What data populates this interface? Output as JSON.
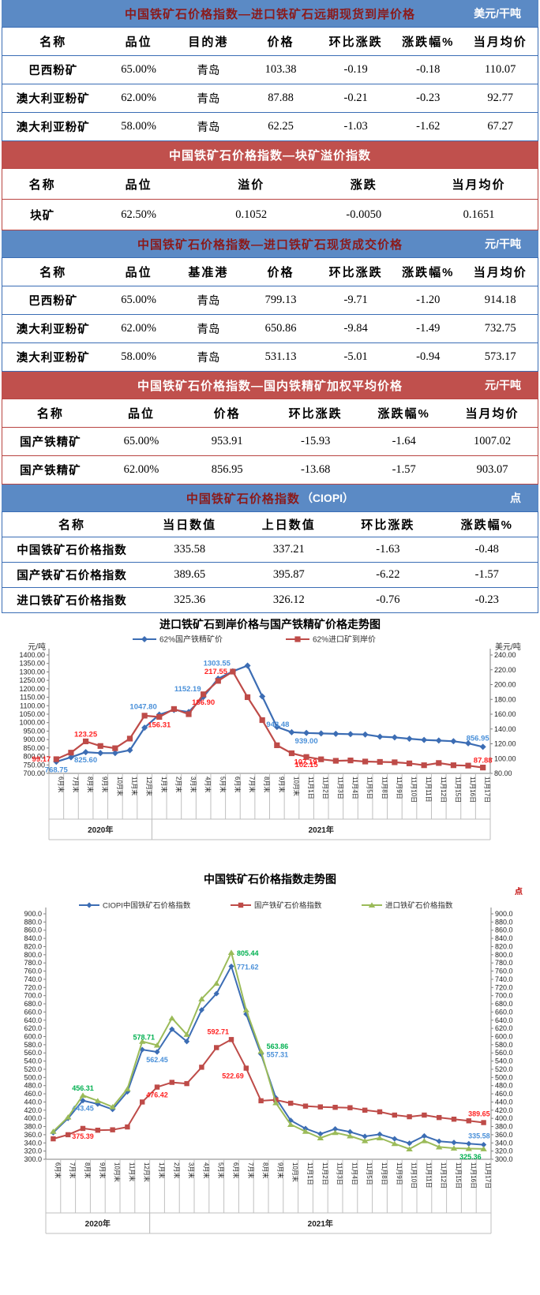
{
  "tables": [
    {
      "theme": "blue",
      "title": "中国铁矿石价格指数—进口铁矿石远期现货到岸价格",
      "unit": "美元/干吨",
      "columns": [
        "名称",
        "品位",
        "目的港",
        "价格",
        "环比涨跌",
        "涨跌幅%",
        "当月均价"
      ],
      "rows": [
        [
          "巴西粉矿",
          "65.00%",
          "青岛",
          "103.38",
          "-0.19",
          "-0.18",
          "110.07"
        ],
        [
          "澳大利亚粉矿",
          "62.00%",
          "青岛",
          "87.88",
          "-0.21",
          "-0.23",
          "92.77"
        ],
        [
          "澳大利亚粉矿",
          "58.00%",
          "青岛",
          "62.25",
          "-1.03",
          "-1.62",
          "67.27"
        ]
      ]
    },
    {
      "theme": "red",
      "title": "中国铁矿石价格指数—块矿溢价指数",
      "unit": "",
      "columns": [
        "名称",
        "品位",
        "溢价",
        "涨跌",
        "当月均价"
      ],
      "rows": [
        [
          "块矿",
          "62.50%",
          "0.1052",
          "-0.0050",
          "0.1651"
        ]
      ]
    },
    {
      "theme": "blue",
      "title": "中国铁矿石价格指数—进口铁矿石现货成交价格",
      "unit": "元/干吨",
      "columns": [
        "名称",
        "品位",
        "基准港",
        "价格",
        "环比涨跌",
        "涨跌幅%",
        "当月均价"
      ],
      "rows": [
        [
          "巴西粉矿",
          "65.00%",
          "青岛",
          "799.13",
          "-9.71",
          "-1.20",
          "914.18"
        ],
        [
          "澳大利亚粉矿",
          "62.00%",
          "青岛",
          "650.86",
          "-9.84",
          "-1.49",
          "732.75"
        ],
        [
          "澳大利亚粉矿",
          "58.00%",
          "青岛",
          "531.13",
          "-5.01",
          "-0.94",
          "573.17"
        ]
      ]
    },
    {
      "theme": "red",
      "title": "中国铁矿石价格指数—国内铁精矿加权平均价格",
      "unit": "元/干吨",
      "columns": [
        "名称",
        "品位",
        "价格",
        "环比涨跌",
        "涨跌幅%",
        "当月均价"
      ],
      "rows": [
        [
          "国产铁精矿",
          "65.00%",
          "953.91",
          "-15.93",
          "-1.64",
          "1007.02"
        ],
        [
          "国产铁精矿",
          "62.00%",
          "856.95",
          "-13.68",
          "-1.57",
          "903.07"
        ]
      ]
    },
    {
      "theme": "blue",
      "title": "中国铁矿石价格指数",
      "title2": "（CIOPI）",
      "unit": "点",
      "columns": [
        "名称",
        "当日数值",
        "上日数值",
        "环比涨跌",
        "涨跌幅%"
      ],
      "rows": [
        [
          "中国铁矿石价格指数",
          "335.58",
          "337.21",
          "-1.63",
          "-0.48"
        ],
        [
          "国产铁矿石价格指数",
          "389.65",
          "395.87",
          "-6.22",
          "-1.57"
        ],
        [
          "进口铁矿石价格指数",
          "325.36",
          "326.12",
          "-0.76",
          "-0.23"
        ]
      ]
    }
  ],
  "chart_data": [
    {
      "type": "line",
      "title": "进口铁矿石到岸价格与国产铁精矿价格走势图",
      "left_axis": {
        "min": 700,
        "max": 1400,
        "step": 50,
        "decimals": 2,
        "title": "元/吨"
      },
      "right_axis": {
        "min": 80,
        "max": 240,
        "step": 20,
        "decimals": 2,
        "title": "美元/吨"
      },
      "categories": [
        "6月末",
        "7月末",
        "8月末",
        "9月末",
        "10月末",
        "11月末",
        "12月末",
        "1月末",
        "2月末",
        "3月末",
        "4月末",
        "5月末",
        "6月末",
        "7月末",
        "8月末",
        "9月末",
        "10月末",
        "11月1日",
        "11月2日",
        "11月3日",
        "11月4日",
        "11月5日",
        "11月8日",
        "11月9日",
        "11月10日",
        "11月11日",
        "11月12日",
        "11月15日",
        "11月16日",
        "11月17日"
      ],
      "year_groups": [
        {
          "label": "2020年",
          "from": 0,
          "to": 6
        },
        {
          "label": "2021年",
          "from": 7,
          "to": 29
        }
      ],
      "series": [
        {
          "name": "62%国产铁精矿价",
          "color": "#3c6db4",
          "label_color": "#4a90d9",
          "marker": "diamond",
          "axis": "left",
          "values": [
            768.75,
            795,
            825.6,
            820,
            820,
            837,
            970,
            1047.8,
            1075,
            1063,
            1152.19,
            1260,
            1303.55,
            1337,
            1155,
            975,
            943.48,
            939.0,
            936,
            934,
            932,
            930,
            917,
            913,
            905,
            898,
            894,
            890,
            878,
            856.95
          ],
          "annotations": [
            {
              "i": 0,
              "text": "768.75",
              "pos": "below"
            },
            {
              "i": 2,
              "text": "825.60",
              "pos": "below"
            },
            {
              "i": 7,
              "text": "1047.80",
              "pos": "above-left"
            },
            {
              "i": 10,
              "text": "1152.19",
              "pos": "above-left"
            },
            {
              "i": 12,
              "text": "1303.55",
              "pos": "above-left"
            },
            {
              "i": 16,
              "text": "943.48",
              "pos": "above-left"
            },
            {
              "i": 17,
              "text": "939.00",
              "pos": "below"
            },
            {
              "i": 29,
              "text": "856.95",
              "pos": "above-end"
            }
          ]
        },
        {
          "name": "62%进口矿到岸价",
          "color": "#be4b48",
          "label_color": "#ff2222",
          "marker": "square",
          "axis": "right",
          "values": [
            99.17,
            108,
            123.25,
            117,
            114,
            127,
            158,
            156.31,
            167,
            160,
            186.9,
            205,
            217.55,
            183,
            152,
            118,
            107.19,
            102.15,
            99.0,
            97.0,
            97.5,
            96.0,
            95.5,
            95.0,
            93.5,
            91.0,
            94.0,
            91.0,
            90.5,
            87.88
          ],
          "annotations": [
            {
              "i": 0,
              "text": "99.17",
              "pos": "left"
            },
            {
              "i": 2,
              "text": "123.25",
              "pos": "above"
            },
            {
              "i": 7,
              "text": "156.31",
              "pos": "below"
            },
            {
              "i": 10,
              "text": "186.90",
              "pos": "below"
            },
            {
              "i": 12,
              "text": "217.55",
              "pos": "left"
            },
            {
              "i": 16,
              "text": "107.19",
              "pos": "below-right"
            },
            {
              "i": 17,
              "text": "102.15",
              "pos": "below"
            },
            {
              "i": 29,
              "text": "87.88",
              "pos": "above"
            }
          ]
        }
      ]
    },
    {
      "type": "line",
      "title": "中国铁矿石价格指数走势图",
      "left_axis": {
        "min": 300,
        "max": 900,
        "step": 20,
        "decimals": 1,
        "title": ""
      },
      "right_axis": {
        "min": 300,
        "max": 900,
        "step": 20,
        "decimals": 1,
        "title": "点"
      },
      "categories": [
        "6月末",
        "7月末",
        "8月末",
        "9月末",
        "10月末",
        "11月末",
        "12月末",
        "1月末",
        "2月末",
        "3月末",
        "4月末",
        "5月末",
        "6月末",
        "7月末",
        "8月末",
        "9月末",
        "10月末",
        "11月1日",
        "11月2日",
        "11月3日",
        "11月4日",
        "11月5日",
        "11月8日",
        "11月9日",
        "11月10日",
        "11月11日",
        "11月12日",
        "11月15日",
        "11月16日",
        "11月17日"
      ],
      "year_groups": [
        {
          "label": "2020年",
          "from": 0,
          "to": 6
        },
        {
          "label": "2021年",
          "from": 7,
          "to": 29
        }
      ],
      "series": [
        {
          "name": "CIOPI中国铁矿石价格指数",
          "color": "#3c6db4",
          "label_color": "#4a90d9",
          "marker": "diamond",
          "axis": "left",
          "values": [
            365,
            400,
            443.45,
            435,
            422,
            465,
            568,
            562.45,
            618,
            588,
            665,
            705,
            771.62,
            655,
            557.31,
            450,
            395,
            375,
            362,
            374,
            367,
            356,
            361,
            350,
            339,
            357,
            344,
            341,
            338,
            335.58
          ],
          "annotations": [
            {
              "i": 2,
              "text": "443.45",
              "pos": "below"
            },
            {
              "i": 7,
              "text": "562.45",
              "pos": "below"
            },
            {
              "i": 12,
              "text": "771.62",
              "pos": "right"
            },
            {
              "i": 14,
              "text": "557.31",
              "pos": "right"
            },
            {
              "i": 29,
              "text": "335.58",
              "pos": "above-end"
            }
          ]
        },
        {
          "name": "国产铁矿石价格指数",
          "color": "#be4b48",
          "label_color": "#ff2222",
          "marker": "square",
          "axis": "left",
          "values": [
            350,
            360,
            375.39,
            371,
            372,
            379,
            440,
            476.42,
            488,
            485,
            525,
            573,
            592.71,
            522.69,
            443,
            445,
            437,
            430,
            428,
            427,
            426,
            420,
            416,
            408,
            404,
            408,
            402,
            398,
            394,
            389.65
          ],
          "annotations": [
            {
              "i": 2,
              "text": "375.39",
              "pos": "below"
            },
            {
              "i": 7,
              "text": "476.42",
              "pos": "below"
            },
            {
              "i": 12,
              "text": "592.71",
              "pos": "above-left"
            },
            {
              "i": 13,
              "text": "522.69",
              "pos": "below-left"
            },
            {
              "i": 29,
              "text": "389.65",
              "pos": "above-end"
            }
          ]
        },
        {
          "name": "进口铁矿石价格指数",
          "color": "#9bbb59",
          "label_color": "#00b050",
          "marker": "triangle",
          "axis": "left",
          "values": [
            368,
            403,
            456.31,
            443,
            428,
            472,
            588,
            578.71,
            645,
            605,
            692,
            730,
            805.44,
            665,
            563.86,
            438,
            385,
            368,
            352,
            365,
            357,
            345,
            352,
            338,
            325,
            345,
            330,
            327,
            326,
            325.36
          ],
          "annotations": [
            {
              "i": 2,
              "text": "456.31",
              "pos": "above"
            },
            {
              "i": 7,
              "text": "578.71",
              "pos": "above-left"
            },
            {
              "i": 12,
              "text": "805.44",
              "pos": "right"
            },
            {
              "i": 14,
              "text": "563.86",
              "pos": "right-above"
            },
            {
              "i": 29,
              "text": "325.36",
              "pos": "below-left"
            }
          ]
        }
      ]
    }
  ]
}
